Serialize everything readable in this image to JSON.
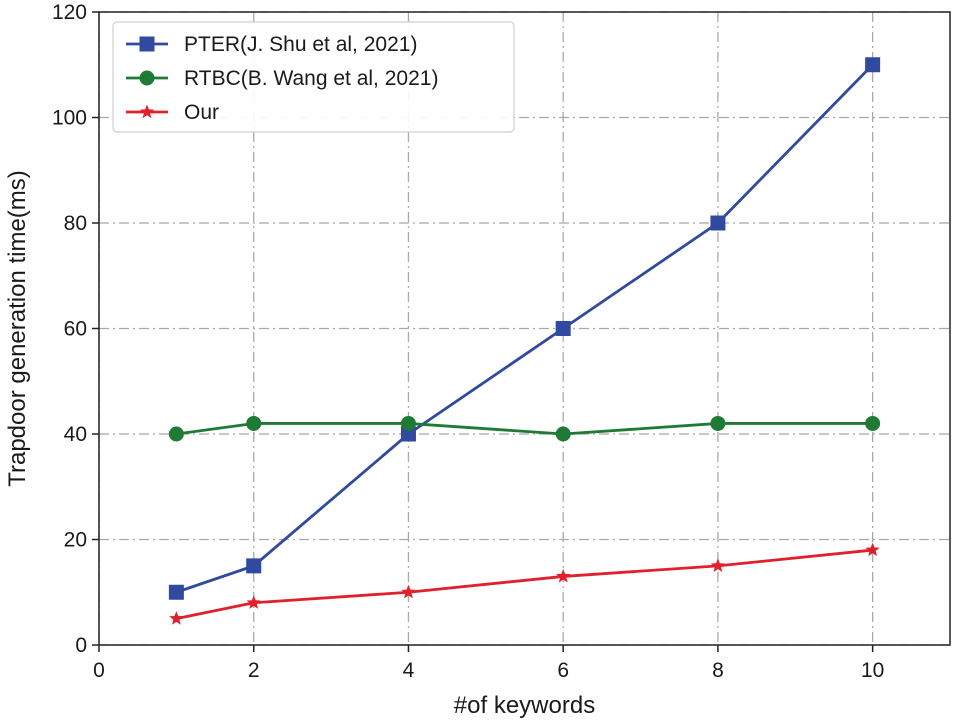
{
  "chart_data": {
    "type": "line",
    "title": "",
    "xlabel": "#of keywords",
    "ylabel": "Trapdoor generation time(ms)",
    "xlim": [
      0,
      11
    ],
    "ylim": [
      0,
      120
    ],
    "xticks": [
      0,
      2,
      4,
      6,
      8,
      10
    ],
    "yticks": [
      0,
      20,
      40,
      60,
      80,
      100,
      120
    ],
    "grid": true,
    "legend_position": "top-left",
    "x": [
      1,
      2,
      4,
      6,
      8,
      10
    ],
    "series": [
      {
        "name": "PTER(J. Shu et al, 2021)",
        "color": "#2f4a9e",
        "marker": "square",
        "values": [
          10,
          15,
          40,
          60,
          80,
          110
        ]
      },
      {
        "name": "RTBC(B. Wang et al, 2021)",
        "color": "#1f7a35",
        "marker": "circle",
        "values": [
          40,
          42,
          42,
          40,
          42,
          42
        ]
      },
      {
        "name": "Our",
        "color": "#e0202a",
        "marker": "star",
        "values": [
          5,
          8,
          10,
          13,
          15,
          18
        ]
      }
    ]
  }
}
